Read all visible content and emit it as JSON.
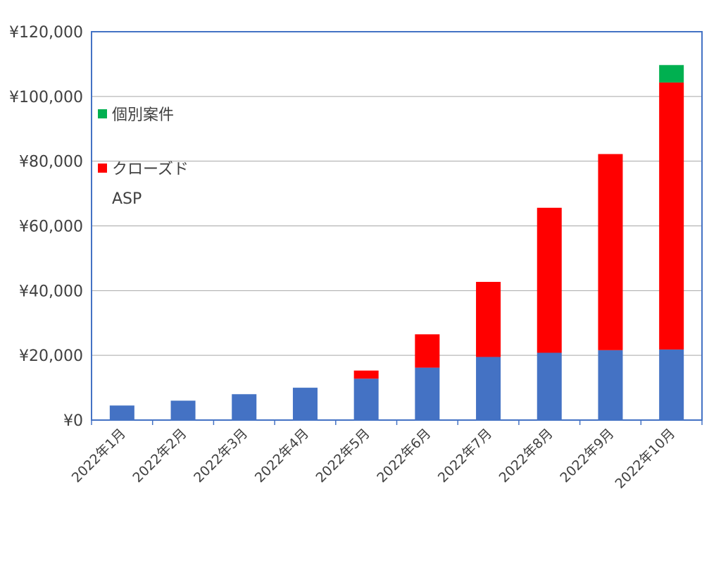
{
  "chart_data": {
    "type": "bar",
    "stacked": true,
    "title": "",
    "xlabel": "",
    "ylabel": "",
    "ylim": [
      0,
      120000
    ],
    "y_ticks": [
      "¥0",
      "¥20,000",
      "¥40,000",
      "¥60,000",
      "¥80,000",
      "¥100,000",
      "¥120,000"
    ],
    "y_tick_values": [
      0,
      20000,
      40000,
      60000,
      80000,
      100000,
      120000
    ],
    "grid": true,
    "legend_placement": "top-left",
    "categories": [
      "2022年1月",
      "2022年2月",
      "2022年3月",
      "2022年4月",
      "2022年5月",
      "2022年6月",
      "2022年7月",
      "2022年8月",
      "2022年9月",
      "2022年10月"
    ],
    "series": [
      {
        "name": "",
        "color": "#4472C4",
        "values": [
          4500,
          6000,
          8000,
          10000,
          12800,
          16200,
          19500,
          20800,
          21600,
          21800
        ]
      },
      {
        "name": "クローズド",
        "legend_line2": "ASP",
        "color": "#FF0000",
        "values": [
          0,
          0,
          0,
          0,
          2500,
          10300,
          23200,
          44800,
          60600,
          82500
        ]
      },
      {
        "name": "個別案件",
        "color": "#00B050",
        "values": [
          0,
          0,
          0,
          0,
          0,
          0,
          0,
          0,
          0,
          5400
        ]
      }
    ]
  }
}
